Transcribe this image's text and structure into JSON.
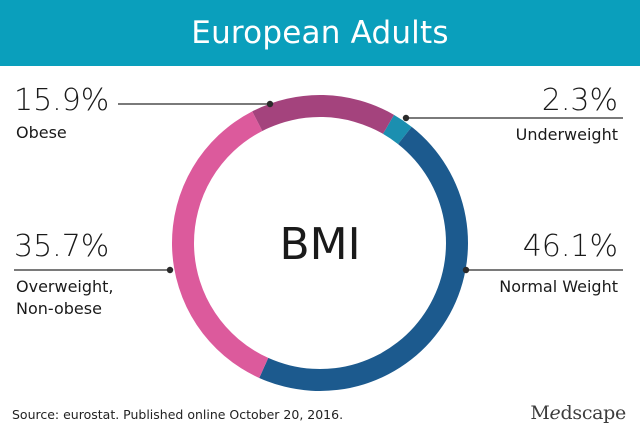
{
  "header": {
    "title": "European Adults"
  },
  "chart_data": {
    "type": "pie",
    "title": "European Adults",
    "center_label": "BMI",
    "series": [
      {
        "name": "Underweight",
        "pct_label": "2.3%",
        "value": 2.3,
        "color": "#1b8fb0"
      },
      {
        "name": "Normal Weight",
        "pct_label": "46.1%",
        "value": 46.1,
        "color": "#1c5a8e"
      },
      {
        "name_line1": "Overweight,",
        "name_line2": "Non-obese",
        "pct_label": "35.7%",
        "value": 35.7,
        "color": "#dc5a9c"
      },
      {
        "name": "Obese",
        "pct_label": "15.9%",
        "value": 15.9,
        "color": "#a4437d"
      }
    ]
  },
  "footer": {
    "source": "Source: eurostat. Published online October 20, 2016.",
    "logo_pre": "M",
    "logo_e": "e",
    "logo_post": "dscape"
  }
}
